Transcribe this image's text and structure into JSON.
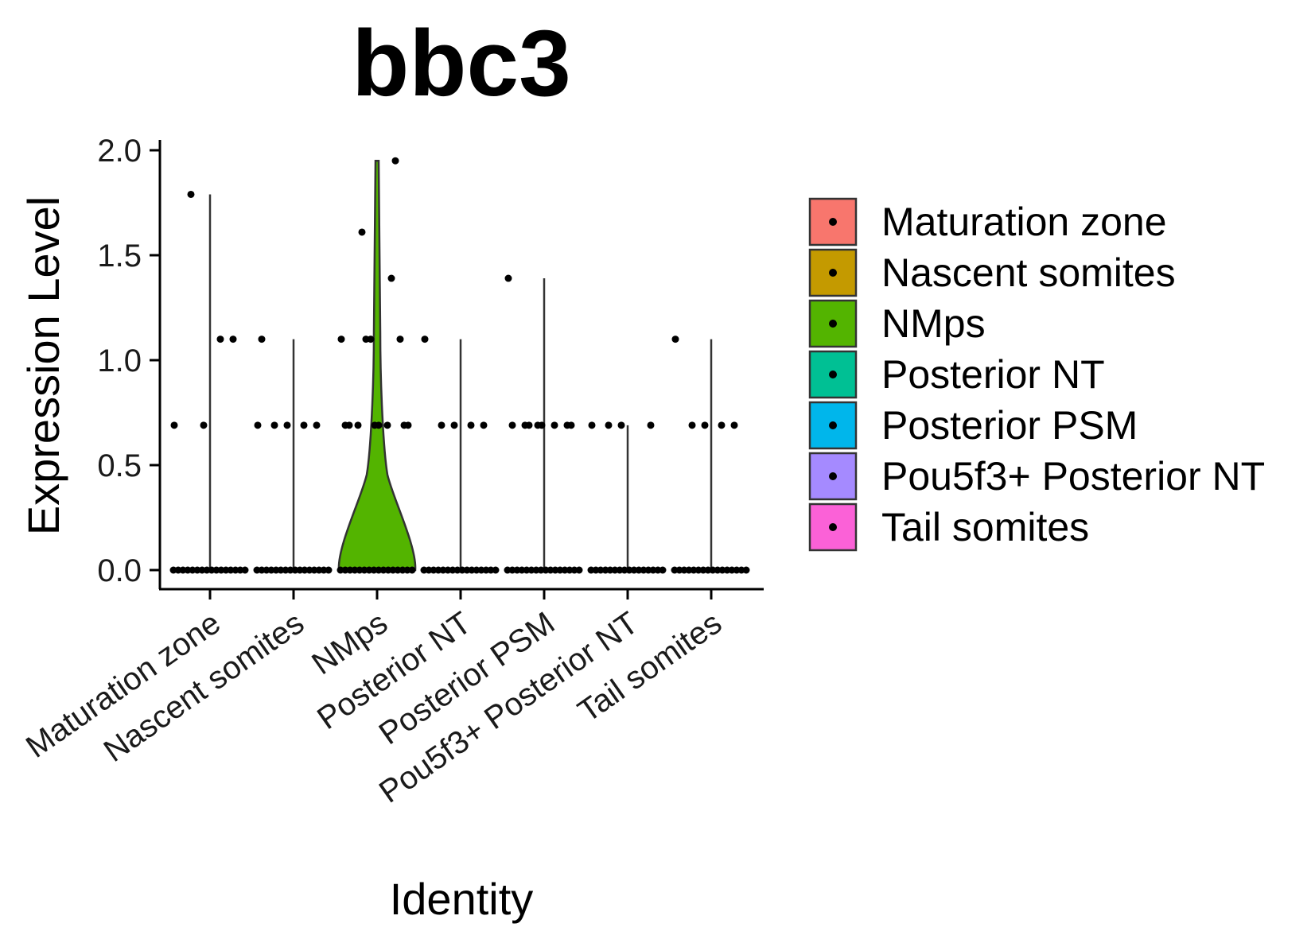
{
  "chart_data": {
    "type": "violin",
    "title": "bbc3",
    "xlabel": "Identity",
    "ylabel": "Expression Level",
    "ylim": [
      0,
      2.0
    ],
    "yticks": [
      "0.0",
      "0.5",
      "1.0",
      "1.5",
      "2.0"
    ],
    "ytick_values": [
      0,
      0.5,
      1.0,
      1.5,
      2.0
    ],
    "categories": [
      "Maturation zone",
      "Nascent somites",
      "NMps",
      "Posterior NT",
      "Posterior PSM",
      "Pou5f3+ Posterior NT",
      "Tail somites"
    ],
    "legend_position": "right",
    "grid": false,
    "series": [
      {
        "name": "Maturation zone",
        "color": "#F8766D",
        "max": 1.79,
        "points": [
          0.69,
          0.69,
          1.1,
          1.79,
          1.1
        ]
      },
      {
        "name": "Nascent somites",
        "color": "#C49A00",
        "max": 1.1,
        "points": [
          0.69,
          0.69,
          0.69,
          0.69,
          0.69,
          1.1
        ]
      },
      {
        "name": "NMps",
        "color": "#53B400",
        "max": 1.95,
        "points": [
          1.1,
          1.1,
          1.1,
          0.69,
          0.69,
          0.69,
          0.69,
          0.69,
          1.61,
          1.39,
          0.69,
          0.69,
          0.69,
          1.1,
          1.95
        ]
      },
      {
        "name": "Posterior NT",
        "color": "#00C094",
        "max": 1.1,
        "points": [
          1.1,
          0.69,
          0.69,
          0.69,
          0.69
        ]
      },
      {
        "name": "Posterior PSM",
        "color": "#00B6EB",
        "max": 1.39,
        "points": [
          1.39,
          0.69,
          0.69,
          0.69,
          0.69,
          0.69,
          0.69,
          0.69,
          0.69
        ]
      },
      {
        "name": "Pou5f3+ Posterior NT",
        "color": "#A58AFF",
        "max": 0.69,
        "points": [
          0.69,
          0.69,
          0.69,
          0.69
        ]
      },
      {
        "name": "Tail somites",
        "color": "#FB61D7",
        "max": 1.1,
        "points": [
          1.1,
          0.69,
          0.69,
          0.69,
          0.69
        ]
      }
    ]
  }
}
